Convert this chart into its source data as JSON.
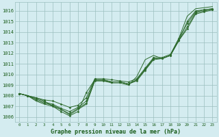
{
  "background_color": "#d4ecf0",
  "grid_color": "#9bbfbf",
  "line_color": "#2d6a2d",
  "marker_color": "#2d6a2d",
  "text_color": "#1a5c1a",
  "xlabel": "Graphe pression niveau de la mer (hPa)",
  "ylim": [
    1005.5,
    1016.8
  ],
  "xlim": [
    -0.5,
    23.5
  ],
  "yticks": [
    1006,
    1007,
    1008,
    1009,
    1010,
    1011,
    1012,
    1013,
    1014,
    1015,
    1016
  ],
  "xticks": [
    0,
    1,
    2,
    3,
    4,
    5,
    6,
    7,
    8,
    9,
    10,
    11,
    12,
    13,
    14,
    15,
    16,
    17,
    18,
    19,
    20,
    21,
    22,
    23
  ],
  "series": [
    [
      1008.2,
      1008.0,
      1007.8,
      1007.5,
      1007.0,
      1006.5,
      1006.1,
      1006.5,
      1008.3,
      1009.5,
      1009.5,
      1009.3,
      1009.3,
      1009.1,
      1009.5,
      1010.5,
      1011.5,
      1011.5,
      1011.8,
      1013.2,
      1015.0,
      1016.0,
      1016.1,
      1016.2
    ],
    [
      1008.2,
      1008.0,
      1007.7,
      1007.4,
      1007.2,
      1006.8,
      1006.5,
      1006.9,
      1007.5,
      1009.5,
      1009.5,
      1009.3,
      1009.3,
      1009.1,
      1009.5,
      1010.5,
      1011.5,
      1011.5,
      1011.8,
      1013.2,
      1014.5,
      1015.8,
      1016.0,
      1016.1
    ],
    [
      1008.2,
      1008.0,
      1007.6,
      1007.3,
      1007.1,
      1006.7,
      1006.3,
      1006.8,
      1007.3,
      1009.4,
      1009.4,
      1009.3,
      1009.3,
      1009.1,
      1009.4,
      1010.4,
      1011.4,
      1011.5,
      1011.8,
      1013.2,
      1014.3,
      1015.7,
      1015.9,
      1016.1
    ],
    [
      1008.2,
      1008.0,
      1007.8,
      1007.6,
      1007.5,
      1007.2,
      1006.9,
      1007.1,
      1007.8,
      1009.6,
      1009.6,
      1009.5,
      1009.4,
      1009.3,
      1009.6,
      1010.6,
      1011.6,
      1011.6,
      1011.9,
      1013.4,
      1014.8,
      1015.9,
      1016.1,
      1016.2
    ]
  ],
  "series_high": [
    1008.2,
    1008.0,
    1007.5,
    1007.2,
    1007.0,
    1006.7,
    1006.2,
    1006.7,
    1007.2,
    1009.4,
    1009.4,
    1009.2,
    1009.2,
    1009.0,
    1009.8,
    1011.4,
    1011.8,
    1011.5,
    1011.8,
    1013.4,
    1015.5,
    1016.2,
    1016.3,
    1016.4
  ]
}
